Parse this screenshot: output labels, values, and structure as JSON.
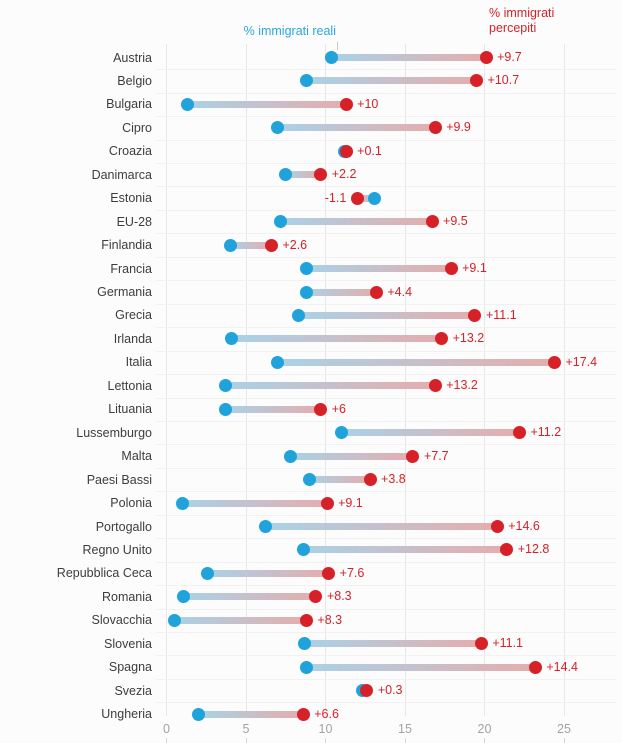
{
  "legend": {
    "real": "% immigrati reali",
    "perceived": "% immigrati percepiti"
  },
  "x_axis": {
    "tick_labels": [
      "0",
      "5",
      "10",
      "15",
      "20",
      "25"
    ],
    "tick_values": [
      0,
      5,
      10,
      15,
      20,
      25
    ]
  },
  "colors": {
    "real_dot": "#1fa3da",
    "perceived_dot": "#d62128",
    "real_text": "#2ba7dc",
    "perceived_text": "#d62128",
    "bar_real_end": "#a9d2e7",
    "bar_perceived_end": "#e5adad",
    "grid": "#e7e7e7",
    "row_grid": "#f1f1f1",
    "label_text": "#3d3d3d",
    "tick_text": "#a3a3a3",
    "background": "#fcfcfc"
  },
  "chart_data": {
    "type": "dumbbell",
    "title": "",
    "xlabel": "",
    "ylabel": "",
    "xlim": [
      0,
      27
    ],
    "grid": true,
    "legend_position": "top",
    "series_names": [
      "% immigrati reali",
      "% immigrati percepiti"
    ],
    "unit": "%",
    "rows": [
      {
        "label": "Austria",
        "real": 10.4,
        "perceived": 20.1,
        "delta_label": "+9.7"
      },
      {
        "label": "Belgio",
        "real": 8.8,
        "perceived": 19.5,
        "delta_label": "+10.7"
      },
      {
        "label": "Bulgaria",
        "real": 1.3,
        "perceived": 11.3,
        "delta_label": "+10"
      },
      {
        "label": "Cipro",
        "real": 7.0,
        "perceived": 16.9,
        "delta_label": "+9.9"
      },
      {
        "label": "Croazia",
        "real": 11.2,
        "perceived": 11.3,
        "delta_label": "+0.1"
      },
      {
        "label": "Danimarca",
        "real": 7.5,
        "perceived": 9.7,
        "delta_label": "+2.2"
      },
      {
        "label": "Estonia",
        "real": 13.1,
        "perceived": 12.0,
        "delta_label": "-1.1"
      },
      {
        "label": "EU-28",
        "real": 7.2,
        "perceived": 16.7,
        "delta_label": "+9.5"
      },
      {
        "label": "Finlandia",
        "real": 4.0,
        "perceived": 6.6,
        "delta_label": "+2.6"
      },
      {
        "label": "Francia",
        "real": 8.8,
        "perceived": 17.9,
        "delta_label": "+9.1"
      },
      {
        "label": "Germania",
        "real": 8.8,
        "perceived": 13.2,
        "delta_label": "+4.4"
      },
      {
        "label": "Grecia",
        "real": 8.3,
        "perceived": 19.4,
        "delta_label": "+11.1"
      },
      {
        "label": "Irlanda",
        "real": 4.1,
        "perceived": 17.3,
        "delta_label": "+13.2"
      },
      {
        "label": "Italia",
        "real": 7.0,
        "perceived": 24.4,
        "delta_label": "+17.4"
      },
      {
        "label": "Lettonia",
        "real": 3.7,
        "perceived": 16.9,
        "delta_label": "+13.2"
      },
      {
        "label": "Lituania",
        "real": 3.7,
        "perceived": 9.7,
        "delta_label": "+6"
      },
      {
        "label": "Lussemburgo",
        "real": 11.0,
        "perceived": 22.2,
        "delta_label": "+11.2"
      },
      {
        "label": "Malta",
        "real": 7.8,
        "perceived": 15.5,
        "delta_label": "+7.7"
      },
      {
        "label": "Paesi Bassi",
        "real": 9.0,
        "perceived": 12.8,
        "delta_label": "+3.8"
      },
      {
        "label": "Polonia",
        "real": 1.0,
        "perceived": 10.1,
        "delta_label": "+9.1"
      },
      {
        "label": "Portogallo",
        "real": 6.2,
        "perceived": 20.8,
        "delta_label": "+14.6"
      },
      {
        "label": "Regno Unito",
        "real": 8.6,
        "perceived": 21.4,
        "delta_label": "+12.8"
      },
      {
        "label": "Repubblica Ceca",
        "real": 2.6,
        "perceived": 10.2,
        "delta_label": "+7.6"
      },
      {
        "label": "Romania",
        "real": 1.1,
        "perceived": 9.4,
        "delta_label": "+8.3"
      },
      {
        "label": "Slovacchia",
        "real": 0.5,
        "perceived": 8.8,
        "delta_label": "+8.3"
      },
      {
        "label": "Slovenia",
        "real": 8.7,
        "perceived": 19.8,
        "delta_label": "+11.1"
      },
      {
        "label": "Spagna",
        "real": 8.8,
        "perceived": 23.2,
        "delta_label": "+14.4"
      },
      {
        "label": "Svezia",
        "real": 12.3,
        "perceived": 12.6,
        "delta_label": "+0.3"
      },
      {
        "label": "Ungheria",
        "real": 2.0,
        "perceived": 8.6,
        "delta_label": "+6.6"
      }
    ]
  }
}
